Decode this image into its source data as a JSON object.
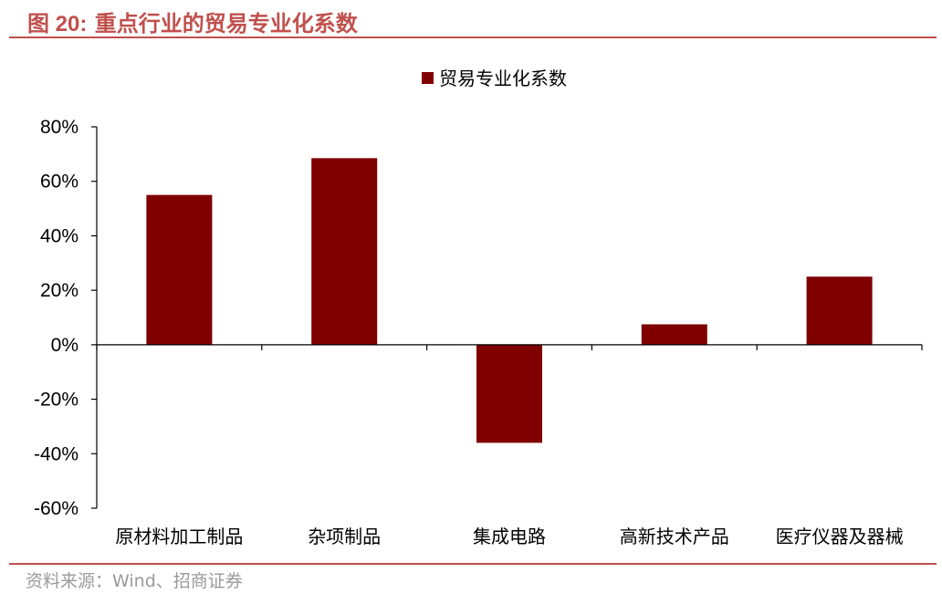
{
  "figure": {
    "label": "图 20:",
    "title": "重点行业的贸易专业化系数",
    "source": "资料来源：Wind、招商证券"
  },
  "colors": {
    "accent": "#c0504d",
    "bar": "#800000",
    "source_text": "#9a9a9a"
  },
  "chart_data": {
    "type": "bar",
    "title": "重点行业的贸易专业化系数",
    "xlabel": "",
    "ylabel": "",
    "categories": [
      "原材料加工制品",
      "杂项制品",
      "集成电路",
      "高新技术产品",
      "医疗仪器及器械"
    ],
    "series": [
      {
        "name": "贸易专业化系数",
        "values": [
          55,
          68.5,
          -36,
          7.5,
          25
        ]
      }
    ],
    "ylim": [
      -60,
      80
    ],
    "yticks": [
      -60,
      -40,
      -20,
      0,
      20,
      40,
      60,
      80
    ],
    "y_tick_format": "percent",
    "legend": "top-center",
    "grid": false
  }
}
